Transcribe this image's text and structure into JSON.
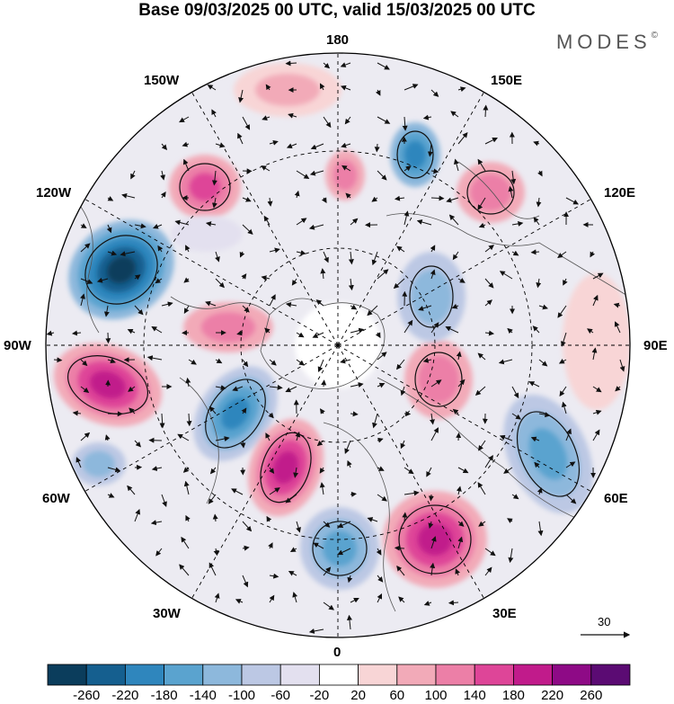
{
  "title": "Base 09/03/2025 00 UTC, valid 15/03/2025 00 UTC",
  "brand": "MODES",
  "brand_mark": "©",
  "longitude_labels": {
    "top": "180",
    "bottom": "0",
    "left": "90W",
    "right": "90E",
    "upper_left_1": "150W",
    "upper_left_2": "120W",
    "upper_right_1": "150E",
    "upper_right_2": "120E",
    "lower_left_1": "60W",
    "lower_left_2": "30W",
    "lower_right_1": "60E",
    "lower_right_2": "30E"
  },
  "vector_scale_label": "30",
  "colorbar": {
    "ticks": [
      "-260",
      "-220",
      "-180",
      "-140",
      "-100",
      "-60",
      "-20",
      "20",
      "60",
      "100",
      "140",
      "180",
      "220",
      "260"
    ],
    "colors": [
      "#0b3d5c",
      "#155f8f",
      "#2f86bd",
      "#5aa3cf",
      "#8db8dc",
      "#bcc8e4",
      "#e3e0ef",
      "#ffffff",
      "#f8d5d6",
      "#f2aab8",
      "#ec7fa7",
      "#de4598",
      "#c11b8b",
      "#8e0a86",
      "#5b0b73"
    ]
  },
  "map_colors": {
    "land_outline": "#555555",
    "grid": "#000000",
    "arrow": "#111111"
  }
}
